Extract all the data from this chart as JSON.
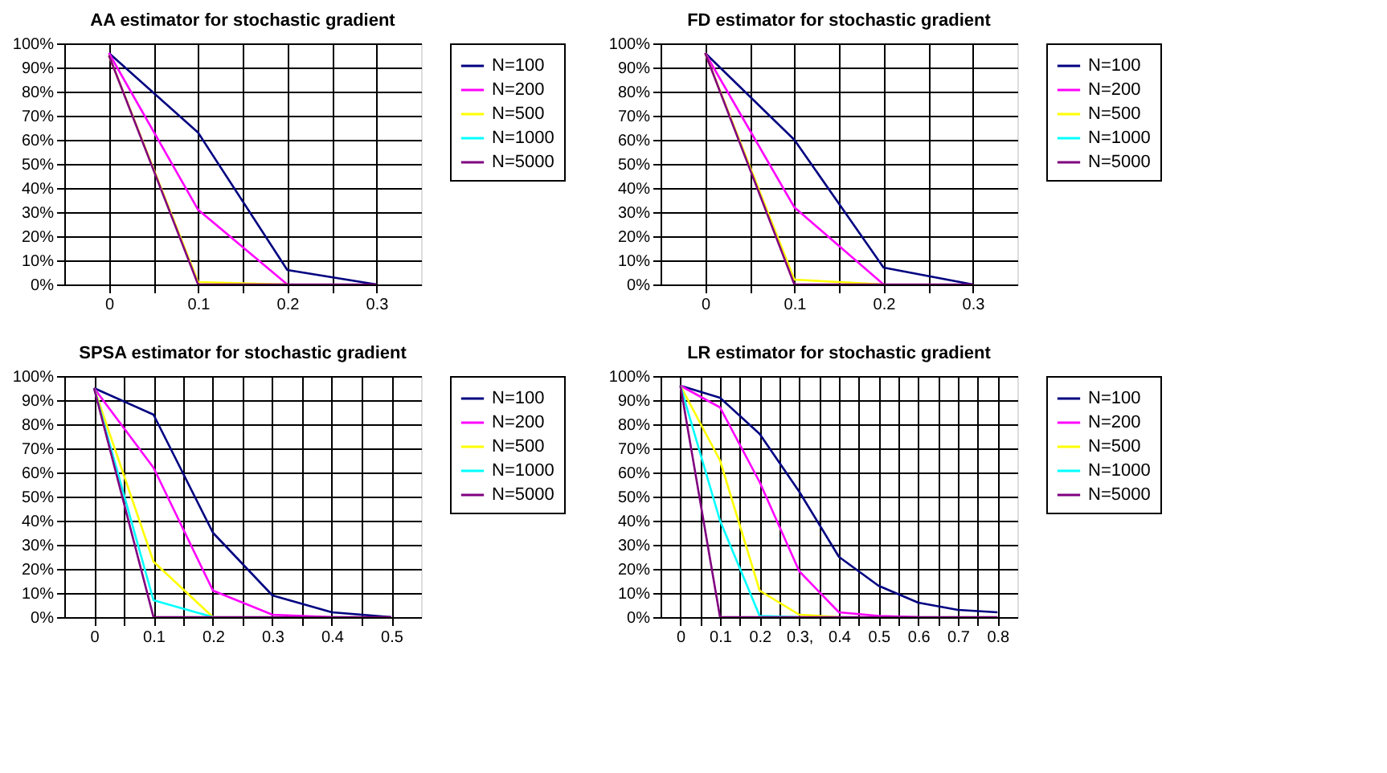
{
  "chart_data": [
    {
      "type": "line",
      "title": "AA estimator for stochastic gradient",
      "x": [
        0,
        0.1,
        0.2,
        0.3
      ],
      "xlim": [
        -0.05,
        0.35
      ],
      "xticks": [
        0,
        {
          "value": 0.05,
          "label": null
        },
        0.1,
        {
          "value": 0.15,
          "label": null
        },
        0.2,
        {
          "value": 0.25,
          "label": null
        },
        0.3
      ],
      "ylim": [
        0,
        100
      ],
      "yticks": [
        {
          "value": 0,
          "label": "0%"
        },
        {
          "value": 10,
          "label": "10%"
        },
        {
          "value": 20,
          "label": "20%"
        },
        {
          "value": 30,
          "label": "30%"
        },
        {
          "value": 40,
          "label": "40%"
        },
        {
          "value": 50,
          "label": "50%"
        },
        {
          "value": 60,
          "label": "60%"
        },
        {
          "value": 70,
          "label": "70%"
        },
        {
          "value": 80,
          "label": "80%"
        },
        {
          "value": 90,
          "label": "90%"
        },
        {
          "value": 100,
          "label": "100%"
        }
      ],
      "grid": true,
      "legend": "right",
      "marker": "none",
      "line_style": "solid",
      "series": [
        {
          "name": "N=100",
          "color": "#000080",
          "values": [
            96,
            63,
            6,
            0
          ]
        },
        {
          "name": "N=200",
          "color": "#ff00ff",
          "values": [
            96,
            31,
            0,
            null
          ]
        },
        {
          "name": "N=500",
          "color": "#ffff00",
          "values": [
            95,
            1,
            0,
            null
          ]
        },
        {
          "name": "N=1000",
          "color": "#00ffff",
          "values": [
            null,
            null,
            null,
            null
          ]
        },
        {
          "name": "N=5000",
          "color": "#800080",
          "values": [
            95,
            0,
            0,
            0
          ]
        }
      ]
    },
    {
      "type": "line",
      "title": "FD estimator for stochastic gradient",
      "x": [
        0,
        0.1,
        0.2,
        0.3
      ],
      "xlim": [
        -0.05,
        0.35
      ],
      "xticks": [
        0,
        {
          "value": 0.05,
          "label": null
        },
        0.1,
        {
          "value": 0.15,
          "label": null
        },
        0.2,
        {
          "value": 0.25,
          "label": null
        },
        0.3
      ],
      "ylim": [
        0,
        100
      ],
      "yticks": [
        {
          "value": 0,
          "label": "0%"
        },
        {
          "value": 10,
          "label": "10%"
        },
        {
          "value": 20,
          "label": "20%"
        },
        {
          "value": 30,
          "label": "30%"
        },
        {
          "value": 40,
          "label": "40%"
        },
        {
          "value": 50,
          "label": "50%"
        },
        {
          "value": 60,
          "label": "60%"
        },
        {
          "value": 70,
          "label": "70%"
        },
        {
          "value": 80,
          "label": "80%"
        },
        {
          "value": 90,
          "label": "90%"
        },
        {
          "value": 100,
          "label": "100%"
        }
      ],
      "grid": true,
      "legend": "right",
      "marker": "none",
      "line_style": "solid",
      "series": [
        {
          "name": "N=100",
          "color": "#000080",
          "values": [
            96,
            60,
            7,
            0
          ]
        },
        {
          "name": "N=200",
          "color": "#ff00ff",
          "values": [
            96,
            32,
            0,
            null
          ]
        },
        {
          "name": "N=500",
          "color": "#ffff00",
          "values": [
            96,
            2,
            0,
            null
          ]
        },
        {
          "name": "N=1000",
          "color": "#00ffff",
          "values": [
            null,
            null,
            null,
            null
          ]
        },
        {
          "name": "N=5000",
          "color": "#800080",
          "values": [
            96,
            0,
            0,
            0
          ]
        }
      ]
    },
    {
      "type": "line",
      "title": "SPSA estimator  for stochastic gradient",
      "x": [
        0,
        0.1,
        0.2,
        0.3,
        0.4,
        0.5
      ],
      "xlim": [
        -0.05,
        0.55
      ],
      "xticks": [
        0,
        {
          "value": 0.05,
          "label": null
        },
        0.1,
        {
          "value": 0.15,
          "label": null
        },
        0.2,
        {
          "value": 0.25,
          "label": null
        },
        0.3,
        {
          "value": 0.35,
          "label": null
        },
        0.4,
        {
          "value": 0.45,
          "label": null
        },
        0.5
      ],
      "ylim": [
        0,
        100
      ],
      "yticks": [
        {
          "value": 0,
          "label": "0%"
        },
        {
          "value": 10,
          "label": "10%"
        },
        {
          "value": 20,
          "label": "20%"
        },
        {
          "value": 30,
          "label": "30%"
        },
        {
          "value": 40,
          "label": "40%"
        },
        {
          "value": 50,
          "label": "50%"
        },
        {
          "value": 60,
          "label": "60%"
        },
        {
          "value": 70,
          "label": "70%"
        },
        {
          "value": 80,
          "label": "80%"
        },
        {
          "value": 90,
          "label": "90%"
        },
        {
          "value": 100,
          "label": "100%"
        }
      ],
      "grid": true,
      "legend": "right",
      "marker": "none",
      "line_style": "solid",
      "series": [
        {
          "name": "N=100",
          "color": "#000080",
          "values": [
            95,
            84,
            35,
            9,
            2,
            0
          ]
        },
        {
          "name": "N=200",
          "color": "#ff00ff",
          "values": [
            95,
            62,
            11,
            1,
            0,
            null
          ]
        },
        {
          "name": "N=500",
          "color": "#ffff00",
          "values": [
            95,
            23,
            0,
            null,
            null,
            null
          ]
        },
        {
          "name": "N=1000",
          "color": "#00ffff",
          "values": [
            95,
            7,
            0,
            null,
            null,
            null
          ]
        },
        {
          "name": "N=5000",
          "color": "#800080",
          "values": [
            95,
            0,
            0,
            0,
            0,
            0
          ]
        }
      ]
    },
    {
      "type": "line",
      "title": "LR estimator for stochastic gradient",
      "x": [
        0,
        0.1,
        0.2,
        0.3,
        0.4,
        0.5,
        0.6,
        0.7,
        0.8
      ],
      "xlim": [
        -0.05,
        0.85
      ],
      "xticks": [
        0,
        {
          "value": 0.05,
          "label": null
        },
        0.1,
        {
          "value": 0.15,
          "label": null
        },
        0.2,
        {
          "value": 0.25,
          "label": null
        },
        {
          "value": 0.3,
          "label": "0.3,"
        },
        {
          "value": 0.35,
          "label": null
        },
        0.4,
        {
          "value": 0.45,
          "label": null
        },
        0.5,
        {
          "value": 0.55,
          "label": null
        },
        0.6,
        {
          "value": 0.65,
          "label": null
        },
        0.7,
        {
          "value": 0.75,
          "label": null
        },
        0.8
      ],
      "ylim": [
        0,
        100
      ],
      "yticks": [
        {
          "value": 0,
          "label": "0%"
        },
        {
          "value": 10,
          "label": "10%"
        },
        {
          "value": 20,
          "label": "20%"
        },
        {
          "value": 30,
          "label": "30%"
        },
        {
          "value": 40,
          "label": "40%"
        },
        {
          "value": 50,
          "label": "50%"
        },
        {
          "value": 60,
          "label": "60%"
        },
        {
          "value": 70,
          "label": "70%"
        },
        {
          "value": 80,
          "label": "80%"
        },
        {
          "value": 90,
          "label": "90%"
        },
        {
          "value": 100,
          "label": "100%"
        }
      ],
      "grid": true,
      "legend": "right",
      "marker": "none",
      "line_style": "solid",
      "series": [
        {
          "name": "N=100",
          "color": "#000080",
          "values": [
            96,
            91,
            76,
            52,
            25,
            13,
            6,
            3,
            2
          ]
        },
        {
          "name": "N=200",
          "color": "#ff00ff",
          "values": [
            96,
            87,
            56,
            19,
            2,
            0.5,
            0,
            null,
            null
          ]
        },
        {
          "name": "N=500",
          "color": "#ffff00",
          "values": [
            96,
            65,
            11,
            1,
            0,
            null,
            null,
            null,
            null
          ]
        },
        {
          "name": "N=1000",
          "color": "#00ffff",
          "values": [
            96,
            40,
            0.5,
            0,
            null,
            null,
            null,
            null,
            null
          ]
        },
        {
          "name": "N=5000",
          "color": "#800080",
          "values": [
            96,
            0,
            0,
            0,
            0,
            0,
            0,
            0,
            0
          ]
        }
      ]
    }
  ]
}
